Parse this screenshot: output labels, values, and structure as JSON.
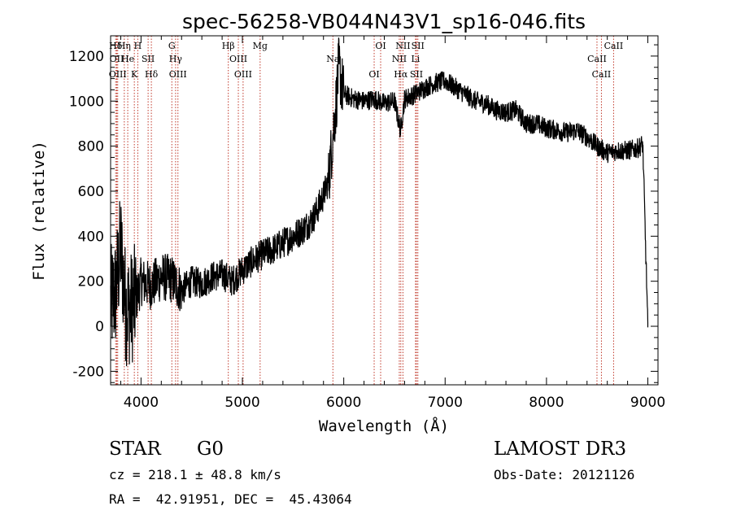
{
  "chart_data": {
    "type": "line",
    "title": "spec-56258-VB044N43V1_sp16-046.fits",
    "xlabel": "Wavelength (Å)",
    "ylabel": "Flux (relative)",
    "xlim": [
      3700,
      9100
    ],
    "ylim": [
      -260,
      1290
    ],
    "xticks": [
      4000,
      5000,
      6000,
      7000,
      8000,
      9000
    ],
    "yticks": [
      -200,
      0,
      200,
      400,
      600,
      800,
      1000,
      1200
    ],
    "series": [
      {
        "name": "spectrum",
        "x": [
          3700,
          3750,
          3800,
          3850,
          3900,
          3950,
          4000,
          4100,
          4200,
          4300,
          4400,
          4500,
          4600,
          4700,
          4800,
          4900,
          5000,
          5100,
          5200,
          5300,
          5400,
          5500,
          5600,
          5700,
          5800,
          5850,
          5900,
          5930,
          5950,
          6000,
          6100,
          6200,
          6300,
          6400,
          6500,
          6560,
          6600,
          6700,
          6800,
          6900,
          7000,
          7100,
          7200,
          7300,
          7400,
          7500,
          7600,
          7700,
          7800,
          7900,
          8000,
          8100,
          8200,
          8300,
          8400,
          8500,
          8600,
          8700,
          8800,
          8900,
          8950,
          9000
        ],
        "y": [
          100,
          150,
          350,
          80,
          80,
          120,
          200,
          180,
          220,
          210,
          160,
          200,
          190,
          220,
          230,
          200,
          250,
          290,
          320,
          340,
          370,
          400,
          430,
          480,
          580,
          650,
          880,
          1020,
          1150,
          1030,
          1010,
          1000,
          1010,
          990,
          1000,
          870,
          1010,
          1030,
          1060,
          1080,
          1090,
          1060,
          1030,
          1000,
          990,
          960,
          950,
          960,
          900,
          900,
          880,
          870,
          860,
          870,
          840,
          800,
          770,
          780,
          780,
          790,
          810,
          -5
        ]
      }
    ],
    "lines": [
      {
        "x": 3750,
        "label": "Hδ"
      },
      {
        "x": 3760,
        "label": "OII"
      },
      {
        "x": 3770,
        "label": "OIII"
      },
      {
        "x": 3835,
        "label": "Hη"
      },
      {
        "x": 3869,
        "label": "He"
      },
      {
        "x": 3934,
        "label": "K"
      },
      {
        "x": 3968,
        "label": "H"
      },
      {
        "x": 4070,
        "label": "SII"
      },
      {
        "x": 4102,
        "label": "Hδ"
      },
      {
        "x": 4304,
        "label": "G"
      },
      {
        "x": 4341,
        "label": "Hγ"
      },
      {
        "x": 4364,
        "label": "OIII"
      },
      {
        "x": 4861,
        "label": "Hβ"
      },
      {
        "x": 4960,
        "label": "OIII"
      },
      {
        "x": 5007,
        "label": "OIII"
      },
      {
        "x": 5175,
        "label": "Mg"
      },
      {
        "x": 5893,
        "label": "Na"
      },
      {
        "x": 6300,
        "label": "OI"
      },
      {
        "x": 6364,
        "label": "OI"
      },
      {
        "x": 6548,
        "label": "NII"
      },
      {
        "x": 6563,
        "label": "Hα"
      },
      {
        "x": 6584,
        "label": "NII"
      },
      {
        "x": 6708,
        "label": "Li"
      },
      {
        "x": 6717,
        "label": "SII"
      },
      {
        "x": 6731,
        "label": "SII"
      },
      {
        "x": 8498,
        "label": "CaII"
      },
      {
        "x": 8542,
        "label": "CaII"
      },
      {
        "x": 8662,
        "label": "CaII"
      }
    ]
  },
  "info": {
    "class_label": "STAR",
    "subclass_label": "G0",
    "survey": "LAMOST DR3",
    "redshift": "cz = 218.1 ± 48.8 km/s",
    "obs_date": "Obs-Date: 20121126",
    "coords": "RA =  42.91951, DEC =  45.43064"
  }
}
